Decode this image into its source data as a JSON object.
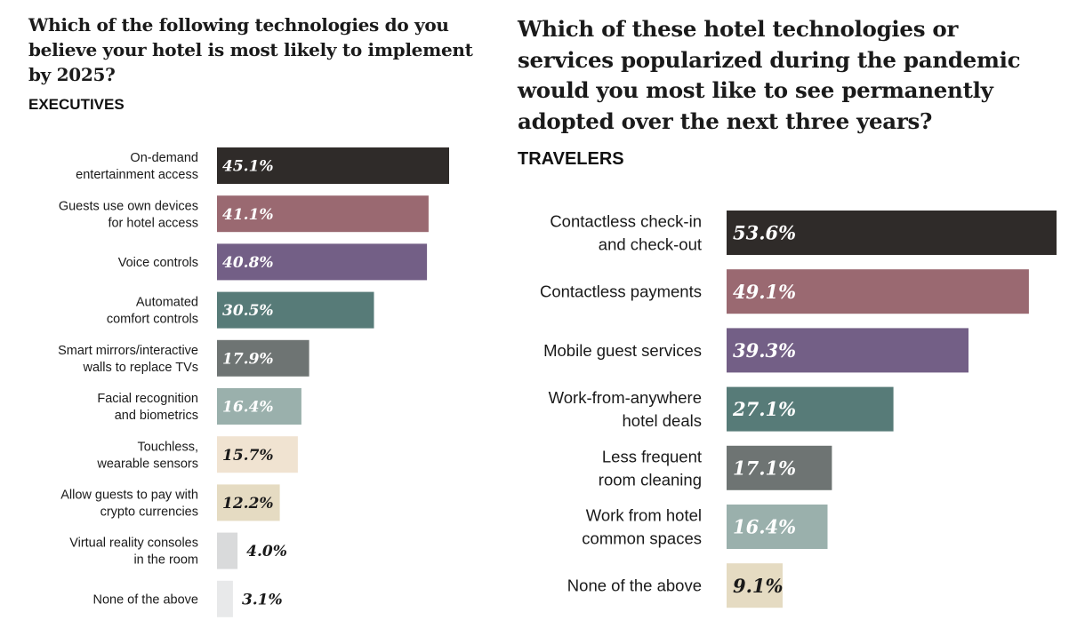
{
  "chart_data": [
    {
      "type": "bar",
      "orientation": "horizontal",
      "title": "Which of the following technologies do you believe your hotel is most likely to implement by 2025?",
      "subtitle": "EXECUTIVES",
      "categories": [
        [
          "On-demand",
          "entertainment access"
        ],
        [
          "Guests use own devices",
          "for hotel access"
        ],
        [
          "Voice controls"
        ],
        [
          "Automated",
          "comfort controls"
        ],
        [
          "Smart mirrors/interactive",
          "walls to replace TVs"
        ],
        [
          "Facial recognition",
          "and biometrics"
        ],
        [
          "Touchless,",
          "wearable sensors"
        ],
        [
          "Allow guests to pay with",
          "crypto currencies"
        ],
        [
          "Virtual reality consoles",
          "in the room"
        ],
        [
          "None of the above"
        ]
      ],
      "values": [
        45.1,
        41.1,
        40.8,
        30.5,
        17.9,
        16.4,
        15.7,
        12.2,
        4.0,
        3.1
      ],
      "labels": [
        "45.1%",
        "41.1%",
        "40.8%",
        "30.5%",
        "17.9%",
        "16.4%",
        "15.7%",
        "12.2%",
        "4.0%",
        "3.1%"
      ],
      "colors": [
        "#2f2b29",
        "#9a6971",
        "#735f86",
        "#577b78",
        "#6e7473",
        "#9ab0ac",
        "#f0e3d1",
        "#e5dbc2",
        "#d9dadb",
        "#e8e9ea"
      ],
      "label_colors": [
        "#ffffff",
        "#ffffff",
        "#ffffff",
        "#ffffff",
        "#ffffff",
        "#ffffff",
        "#1a1a1a",
        "#1a1a1a",
        "#1a1a1a",
        "#1a1a1a"
      ],
      "xlim": [
        0,
        45.1
      ]
    },
    {
      "type": "bar",
      "orientation": "horizontal",
      "title": "Which of these hotel technologies or services popularized during the pandemic would you most like to see permanently adopted over the next three years?",
      "subtitle": "TRAVELERS",
      "categories": [
        [
          "Contactless check-in",
          "and check-out"
        ],
        [
          "Contactless payments"
        ],
        [
          "Mobile guest services"
        ],
        [
          "Work-from-anywhere",
          "hotel deals"
        ],
        [
          "Less frequent",
          "room cleaning"
        ],
        [
          "Work from hotel",
          "common spaces"
        ],
        [
          "None of the above"
        ]
      ],
      "values": [
        53.6,
        49.1,
        39.3,
        27.1,
        17.1,
        16.4,
        9.1
      ],
      "labels": [
        "53.6%",
        "49.1%",
        "39.3%",
        "27.1%",
        "17.1%",
        "16.4%",
        "9.1%"
      ],
      "colors": [
        "#2f2b29",
        "#9a6971",
        "#735f86",
        "#577b78",
        "#6e7473",
        "#9ab0ac",
        "#e5dbc2"
      ],
      "label_colors": [
        "#ffffff",
        "#ffffff",
        "#ffffff",
        "#ffffff",
        "#ffffff",
        "#ffffff",
        "#1a1a1a"
      ],
      "xlim": [
        0,
        53.6
      ]
    }
  ]
}
